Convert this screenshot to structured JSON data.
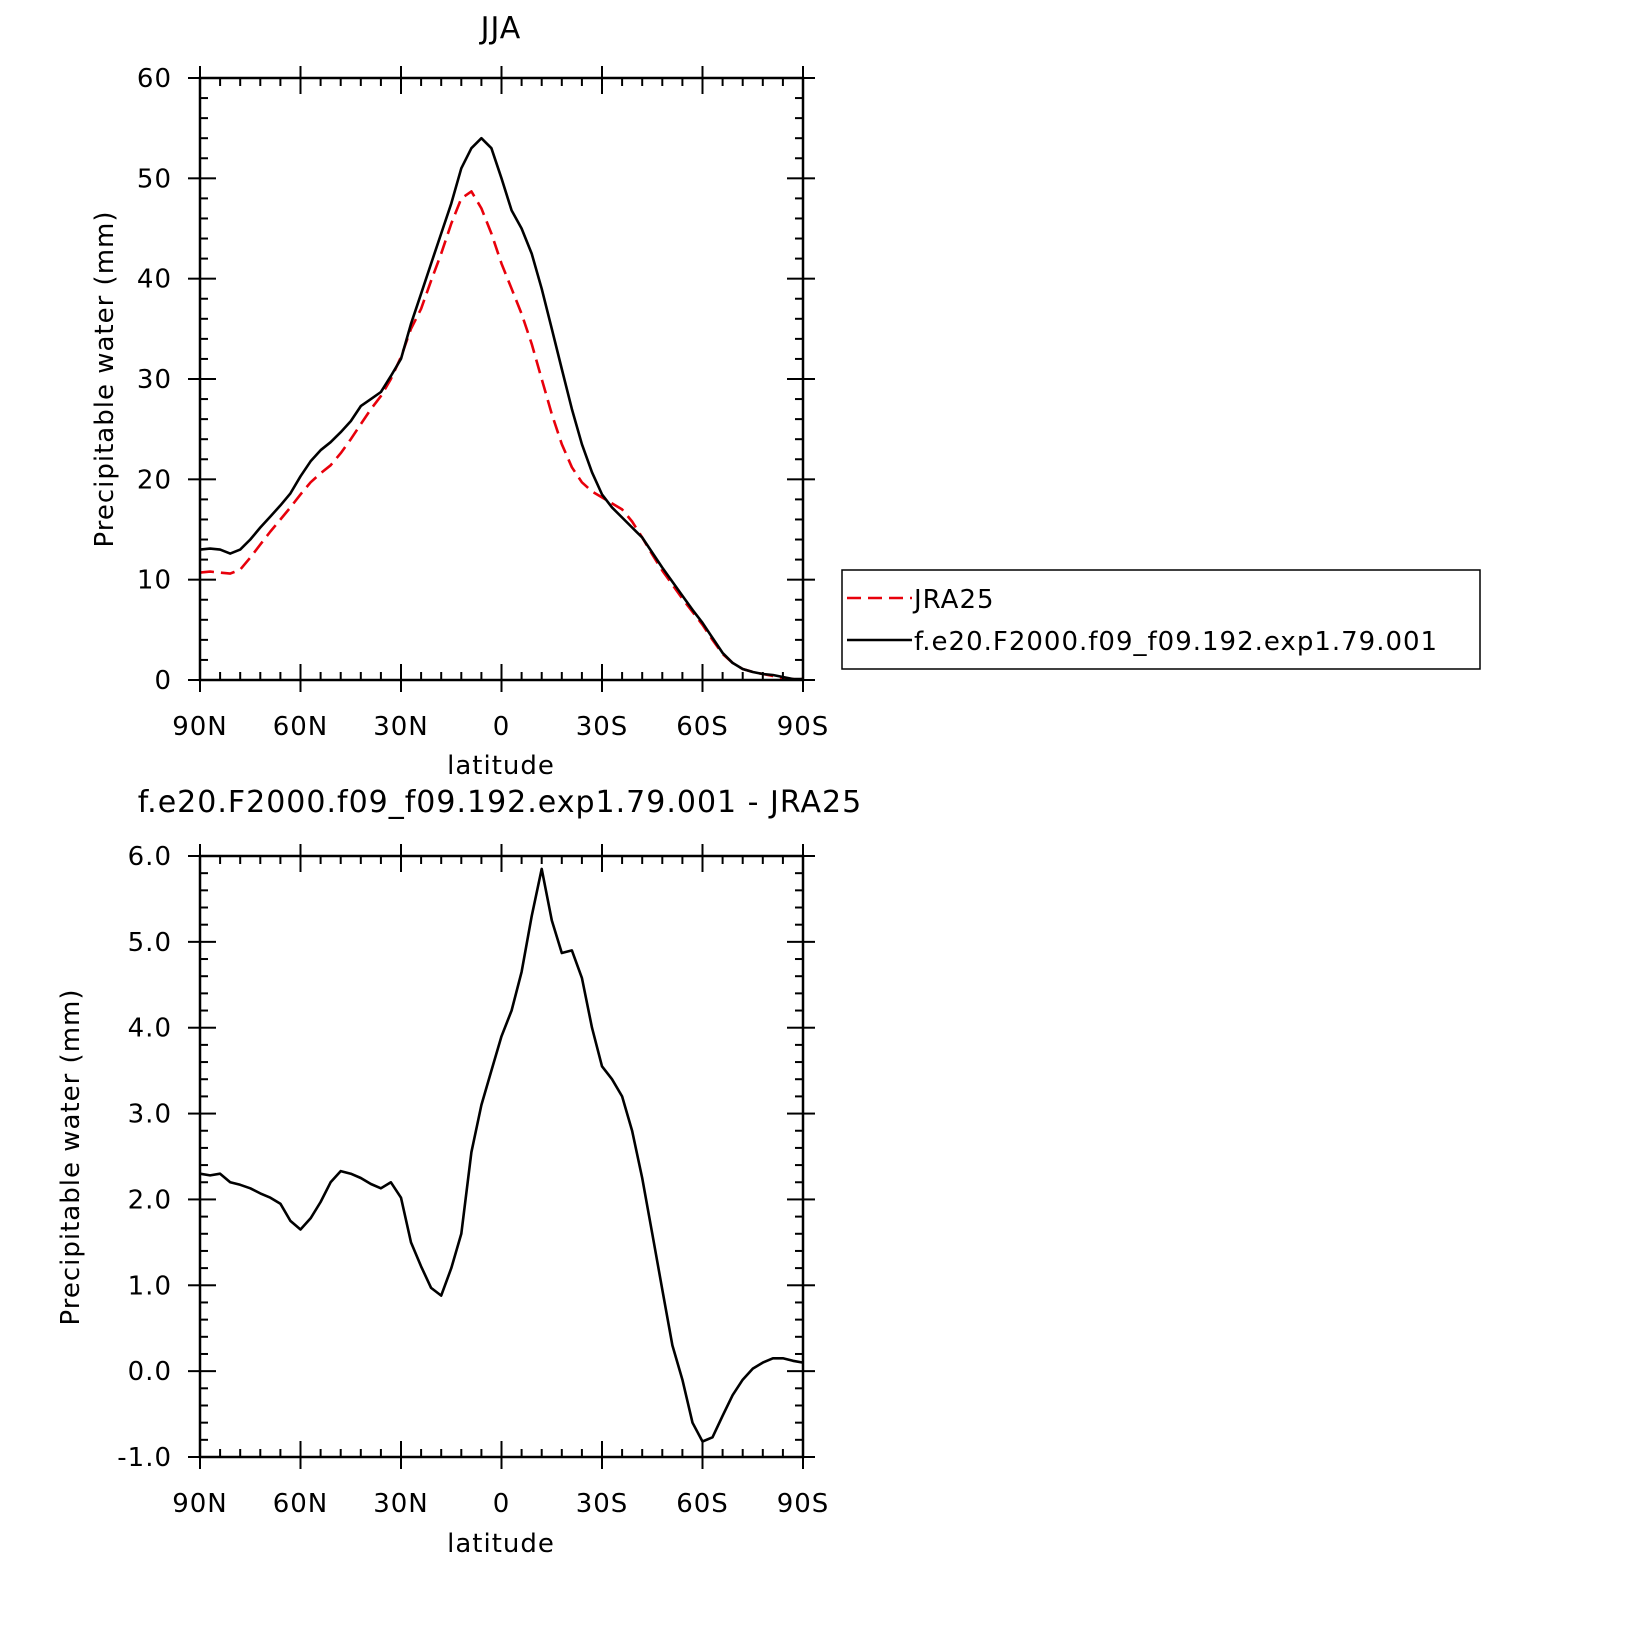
{
  "chart_data": [
    {
      "type": "line",
      "title": "JJA",
      "xlabel": "latitude",
      "ylabel": "Precipitable water (mm)",
      "xlim": [
        90,
        -90
      ],
      "ylim": [
        0,
        60
      ],
      "xtick_values": [
        90,
        60,
        30,
        0,
        -30,
        -60,
        -90
      ],
      "xtick_labels": [
        "90N",
        "60N",
        "30N",
        "0",
        "30S",
        "60S",
        "90S"
      ],
      "ytick_values": [
        0,
        10,
        20,
        30,
        40,
        50,
        60
      ],
      "ytick_labels": [
        "0",
        "10",
        "20",
        "30",
        "40",
        "50",
        "60"
      ],
      "legend_position": "right",
      "series": [
        {
          "name": "JRA25",
          "color": "#e8000b",
          "style": "dashed",
          "points": [
            [
              90,
              10.7
            ],
            [
              87,
              10.8
            ],
            [
              84,
              10.7
            ],
            [
              81,
              10.6
            ],
            [
              78,
              11.0
            ],
            [
              75,
              12.2
            ],
            [
              72,
              13.5
            ],
            [
              69,
              14.8
            ],
            [
              66,
              16.0
            ],
            [
              63,
              17.2
            ],
            [
              60,
              18.5
            ],
            [
              57,
              19.7
            ],
            [
              54,
              20.6
            ],
            [
              51,
              21.4
            ],
            [
              48,
              22.6
            ],
            [
              45,
              24.0
            ],
            [
              42,
              25.5
            ],
            [
              39,
              27.0
            ],
            [
              36,
              28.3
            ],
            [
              33,
              30.0
            ],
            [
              30,
              32.2
            ],
            [
              27,
              35.0
            ],
            [
              24,
              37.0
            ],
            [
              21,
              39.8
            ],
            [
              18,
              42.5
            ],
            [
              15,
              45.5
            ],
            [
              12,
              48.0
            ],
            [
              9,
              48.7
            ],
            [
              6,
              47.0
            ],
            [
              3,
              44.5
            ],
            [
              0,
              41.5
            ],
            [
              -3,
              39.0
            ],
            [
              -6,
              36.5
            ],
            [
              -9,
              33.5
            ],
            [
              -12,
              30.0
            ],
            [
              -15,
              26.5
            ],
            [
              -18,
              23.5
            ],
            [
              -21,
              21.2
            ],
            [
              -24,
              19.7
            ],
            [
              -27,
              18.8
            ],
            [
              -30,
              18.2
            ],
            [
              -33,
              17.6
            ],
            [
              -36,
              17.0
            ],
            [
              -39,
              15.8
            ],
            [
              -42,
              14.2
            ],
            [
              -45,
              12.5
            ],
            [
              -48,
              10.9
            ],
            [
              -51,
              9.5
            ],
            [
              -54,
              8.1
            ],
            [
              -57,
              6.8
            ],
            [
              -60,
              5.5
            ],
            [
              -63,
              4.0
            ],
            [
              -66,
              2.6
            ],
            [
              -69,
              1.7
            ],
            [
              -72,
              1.1
            ],
            [
              -75,
              0.8
            ],
            [
              -78,
              0.6
            ],
            [
              -81,
              0.4
            ],
            [
              -84,
              0.2
            ],
            [
              -87,
              0.1
            ],
            [
              -90,
              0.1
            ]
          ]
        },
        {
          "name": "f.e20.F2000.f09_f09.192.exp1.79.001",
          "color": "#000000",
          "style": "solid",
          "points": [
            [
              90,
              13.0
            ],
            [
              87,
              13.1
            ],
            [
              84,
              13.0
            ],
            [
              81,
              12.6
            ],
            [
              78,
              13.0
            ],
            [
              75,
              14.0
            ],
            [
              72,
              15.2
            ],
            [
              69,
              16.3
            ],
            [
              66,
              17.4
            ],
            [
              63,
              18.6
            ],
            [
              60,
              20.3
            ],
            [
              57,
              21.8
            ],
            [
              54,
              22.9
            ],
            [
              51,
              23.7
            ],
            [
              48,
              24.7
            ],
            [
              45,
              25.8
            ],
            [
              42,
              27.3
            ],
            [
              39,
              28.0
            ],
            [
              36,
              28.7
            ],
            [
              33,
              30.3
            ],
            [
              30,
              32.0
            ],
            [
              27,
              35.5
            ],
            [
              24,
              38.5
            ],
            [
              21,
              41.5
            ],
            [
              18,
              44.5
            ],
            [
              15,
              47.5
            ],
            [
              12,
              51.0
            ],
            [
              9,
              53.0
            ],
            [
              6,
              54.0
            ],
            [
              3,
              53.0
            ],
            [
              0,
              50.0
            ],
            [
              -3,
              46.8
            ],
            [
              -6,
              45.0
            ],
            [
              -9,
              42.5
            ],
            [
              -12,
              39.0
            ],
            [
              -15,
              35.0
            ],
            [
              -18,
              31.0
            ],
            [
              -21,
              27.0
            ],
            [
              -24,
              23.5
            ],
            [
              -27,
              20.7
            ],
            [
              -30,
              18.5
            ],
            [
              -33,
              17.2
            ],
            [
              -36,
              16.2
            ],
            [
              -39,
              15.2
            ],
            [
              -42,
              14.2
            ],
            [
              -45,
              12.7
            ],
            [
              -48,
              11.2
            ],
            [
              -51,
              9.8
            ],
            [
              -54,
              8.4
            ],
            [
              -57,
              7.0
            ],
            [
              -60,
              5.7
            ],
            [
              -63,
              4.2
            ],
            [
              -66,
              2.7
            ],
            [
              -69,
              1.7
            ],
            [
              -72,
              1.1
            ],
            [
              -75,
              0.8
            ],
            [
              -78,
              0.6
            ],
            [
              -81,
              0.5
            ],
            [
              -84,
              0.3
            ],
            [
              -87,
              0.1
            ],
            [
              -90,
              0.1
            ]
          ]
        }
      ]
    },
    {
      "type": "line",
      "title": "f.e20.F2000.f09_f09.192.exp1.79.001 - JRA25",
      "xlabel": "latitude",
      "ylabel": "Precipitable water (mm)",
      "xlim": [
        90,
        -90
      ],
      "ylim": [
        -1.0,
        6.0
      ],
      "xtick_values": [
        90,
        60,
        30,
        0,
        -30,
        -60,
        -90
      ],
      "xtick_labels": [
        "90N",
        "60N",
        "30N",
        "0",
        "30S",
        "60S",
        "90S"
      ],
      "ytick_values": [
        -1.0,
        0.0,
        1.0,
        2.0,
        3.0,
        4.0,
        5.0,
        6.0
      ],
      "ytick_labels": [
        "-1.0",
        "0.0",
        "1.0",
        "2.0",
        "3.0",
        "4.0",
        "5.0",
        "6.0"
      ],
      "series": [
        {
          "color": "#000000",
          "style": "solid",
          "points": [
            [
              90,
              2.3
            ],
            [
              87,
              2.28
            ],
            [
              84,
              2.3
            ],
            [
              81,
              2.2
            ],
            [
              78,
              2.17
            ],
            [
              75,
              2.13
            ],
            [
              72,
              2.07
            ],
            [
              69,
              2.02
            ],
            [
              66,
              1.95
            ],
            [
              63,
              1.75
            ],
            [
              60,
              1.65
            ],
            [
              57,
              1.78
            ],
            [
              54,
              1.97
            ],
            [
              51,
              2.2
            ],
            [
              48,
              2.33
            ],
            [
              45,
              2.3
            ],
            [
              42,
              2.25
            ],
            [
              39,
              2.18
            ],
            [
              36,
              2.13
            ],
            [
              33,
              2.2
            ],
            [
              30,
              2.02
            ],
            [
              27,
              1.5
            ],
            [
              24,
              1.22
            ],
            [
              21,
              0.97
            ],
            [
              18,
              0.88
            ],
            [
              15,
              1.2
            ],
            [
              12,
              1.6
            ],
            [
              9,
              2.55
            ],
            [
              6,
              3.1
            ],
            [
              3,
              3.5
            ],
            [
              0,
              3.9
            ],
            [
              -3,
              4.2
            ],
            [
              -6,
              4.65
            ],
            [
              -9,
              5.3
            ],
            [
              -12,
              5.85
            ],
            [
              -15,
              5.25
            ],
            [
              -18,
              4.87
            ],
            [
              -21,
              4.9
            ],
            [
              -24,
              4.58
            ],
            [
              -27,
              4.0
            ],
            [
              -30,
              3.55
            ],
            [
              -33,
              3.4
            ],
            [
              -36,
              3.2
            ],
            [
              -39,
              2.8
            ],
            [
              -42,
              2.25
            ],
            [
              -45,
              1.6
            ],
            [
              -48,
              0.95
            ],
            [
              -51,
              0.3
            ],
            [
              -54,
              -0.1
            ],
            [
              -57,
              -0.6
            ],
            [
              -60,
              -0.82
            ],
            [
              -63,
              -0.77
            ],
            [
              -66,
              -0.52
            ],
            [
              -69,
              -0.28
            ],
            [
              -72,
              -0.1
            ],
            [
              -75,
              0.03
            ],
            [
              -78,
              0.1
            ],
            [
              -81,
              0.15
            ],
            [
              -84,
              0.15
            ],
            [
              -87,
              0.12
            ],
            [
              -90,
              0.1
            ]
          ]
        }
      ]
    }
  ]
}
